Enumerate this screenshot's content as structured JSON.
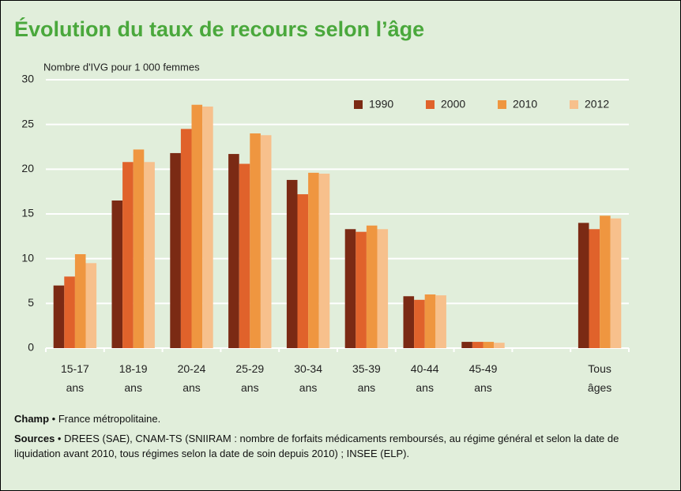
{
  "chart_data": {
    "type": "bar",
    "title": "Évolution du taux de recours selon l’âge",
    "y_label": "Nombre d'IVG pour 1 000 femmes",
    "categories": [
      "15-17 ans",
      "18-19 ans",
      "20-24 ans",
      "25-29 ans",
      "30-34 ans",
      "35-39 ans",
      "40-44 ans",
      "45-49 ans",
      null,
      "Tous âges"
    ],
    "series": [
      {
        "name": "1990",
        "color": "#7b2a14",
        "values": [
          7.0,
          16.5,
          21.8,
          21.7,
          18.8,
          13.3,
          5.8,
          0.7,
          null,
          14.0
        ]
      },
      {
        "name": "2000",
        "color": "#e0622b",
        "values": [
          8.0,
          20.8,
          24.5,
          20.6,
          17.2,
          13.0,
          5.4,
          0.7,
          null,
          13.3
        ]
      },
      {
        "name": "2010",
        "color": "#ef9640",
        "values": [
          10.5,
          22.2,
          27.2,
          24.0,
          19.6,
          13.7,
          6.0,
          0.7,
          null,
          14.8
        ]
      },
      {
        "name": "2012",
        "color": "#f7c08c",
        "values": [
          9.5,
          20.8,
          27.0,
          23.8,
          19.5,
          13.3,
          5.9,
          0.6,
          null,
          14.5
        ]
      }
    ],
    "ylim": [
      0,
      30
    ],
    "yticks": [
      0,
      5,
      10,
      15,
      20,
      25,
      30
    ],
    "grid": true,
    "legend": "top-right",
    "notes": [
      {
        "label": "Champ",
        "text": " • France métropolitaine."
      },
      {
        "label": "Sources",
        "text": " • DREES (SAE), CNAM-TS (SNIIRAM : nombre de forfaits médicaments remboursés, au régime général et selon la date de liquidation avant 2010, tous régimes selon la date de soin depuis 2010) ; INSEE (ELP)."
      }
    ]
  }
}
